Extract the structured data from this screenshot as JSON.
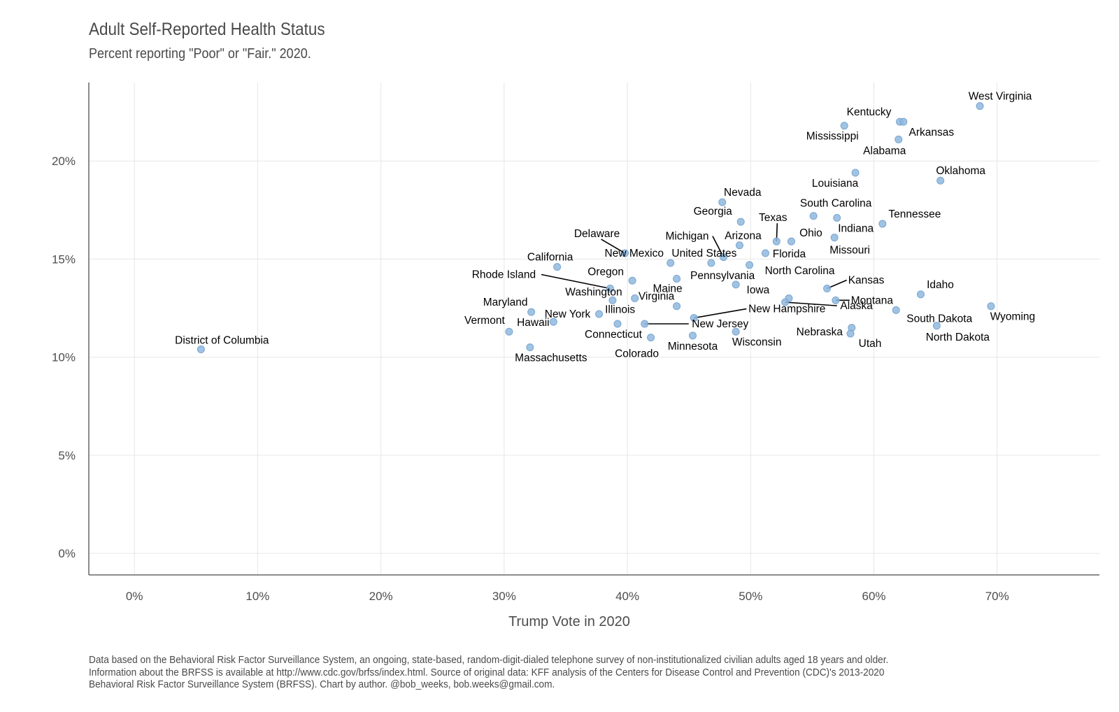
{
  "chart_data": {
    "type": "scatter",
    "title": "Adult Self-Reported Health Status",
    "subtitle": "Percent reporting \"Poor\" or \"Fair.\" 2020.",
    "xlabel": "Trump Vote in 2020",
    "ylabel": "",
    "xlim": [
      -3.7,
      78.3
    ],
    "ylim": [
      -1.1,
      24
    ],
    "x_ticks": [
      0,
      10,
      20,
      30,
      40,
      50,
      60,
      70
    ],
    "x_tick_labels": [
      "0%",
      "10%",
      "20%",
      "30%",
      "40%",
      "50%",
      "60%",
      "70%"
    ],
    "y_ticks": [
      0,
      5,
      10,
      15,
      20
    ],
    "y_tick_labels": [
      "0%",
      "5%",
      "10%",
      "15%",
      "20%"
    ],
    "grid": true,
    "points": [
      {
        "label": "District of Columbia",
        "x": 5.4,
        "y": 10.4
      },
      {
        "label": "Vermont",
        "x": 30.4,
        "y": 11.3
      },
      {
        "label": "Hawaii",
        "x": 34.0,
        "y": 11.8
      },
      {
        "label": "Massachusetts",
        "x": 32.1,
        "y": 10.5
      },
      {
        "label": "Maryland",
        "x": 32.2,
        "y": 12.3
      },
      {
        "label": "California",
        "x": 34.3,
        "y": 14.6
      },
      {
        "label": "New York",
        "x": 37.7,
        "y": 12.2
      },
      {
        "label": "Rhode Island",
        "x": 38.6,
        "y": 13.5
      },
      {
        "label": "Washington",
        "x": 38.8,
        "y": 12.9
      },
      {
        "label": "Connecticut",
        "x": 39.2,
        "y": 11.7
      },
      {
        "label": "Delaware",
        "x": 39.8,
        "y": 15.3
      },
      {
        "label": "Oregon",
        "x": 40.4,
        "y": 13.9
      },
      {
        "label": "Illinois",
        "x": 40.6,
        "y": 13.0
      },
      {
        "label": "New Jersey",
        "x": 41.4,
        "y": 11.7
      },
      {
        "label": "Colorado",
        "x": 41.9,
        "y": 11.0
      },
      {
        "label": "New Mexico",
        "x": 43.5,
        "y": 14.8
      },
      {
        "label": "Virginia",
        "x": 44.0,
        "y": 12.6
      },
      {
        "label": "United States",
        "x": 46.8,
        "y": 14.8
      },
      {
        "label": "Maine",
        "x": 44.0,
        "y": 14.0
      },
      {
        "label": "New Hampshire",
        "x": 45.4,
        "y": 12.0
      },
      {
        "label": "Minnesota",
        "x": 45.3,
        "y": 11.1
      },
      {
        "label": "Michigan",
        "x": 47.8,
        "y": 15.1
      },
      {
        "label": "Nevada",
        "x": 47.7,
        "y": 17.9
      },
      {
        "label": "Pennsylvania",
        "x": 48.8,
        "y": 13.7
      },
      {
        "label": "Wisconsin",
        "x": 48.8,
        "y": 11.3
      },
      {
        "label": "Arizona",
        "x": 49.1,
        "y": 15.7
      },
      {
        "label": "Georgia",
        "x": 49.2,
        "y": 16.9
      },
      {
        "label": "North Carolina",
        "x": 49.9,
        "y": 14.7
      },
      {
        "label": "Florida",
        "x": 51.2,
        "y": 15.3
      },
      {
        "label": "Texas",
        "x": 52.1,
        "y": 15.9
      },
      {
        "label": "Ohio",
        "x": 53.3,
        "y": 15.9
      },
      {
        "label": "Iowa",
        "x": 53.1,
        "y": 13.0
      },
      {
        "label": "Alaska",
        "x": 52.8,
        "y": 12.8
      },
      {
        "label": "South Carolina",
        "x": 55.1,
        "y": 17.2
      },
      {
        "label": "Kansas",
        "x": 56.2,
        "y": 13.5
      },
      {
        "label": "Montana",
        "x": 56.9,
        "y": 12.9
      },
      {
        "label": "Indiana",
        "x": 57.0,
        "y": 17.1
      },
      {
        "label": "Missouri",
        "x": 56.8,
        "y": 16.1
      },
      {
        "label": "Mississippi",
        "x": 57.6,
        "y": 21.8
      },
      {
        "label": "Nebraska",
        "x": 58.2,
        "y": 11.5
      },
      {
        "label": "Utah",
        "x": 58.1,
        "y": 11.2
      },
      {
        "label": "Louisiana",
        "x": 58.5,
        "y": 19.4
      },
      {
        "label": "Tennessee",
        "x": 60.7,
        "y": 16.8
      },
      {
        "label": "South Dakota",
        "x": 61.8,
        "y": 12.4
      },
      {
        "label": "Kentucky",
        "x": 62.1,
        "y": 22.0
      },
      {
        "label": "Alabama",
        "x": 62.0,
        "y": 21.1
      },
      {
        "label": "Arkansas",
        "x": 62.4,
        "y": 22.0
      },
      {
        "label": "Idaho",
        "x": 63.8,
        "y": 13.2
      },
      {
        "label": "North Dakota",
        "x": 65.1,
        "y": 11.6
      },
      {
        "label": "Oklahoma",
        "x": 65.4,
        "y": 19.0
      },
      {
        "label": "West Virginia",
        "x": 68.6,
        "y": 22.8
      },
      {
        "label": "Wyoming",
        "x": 69.5,
        "y": 12.6
      }
    ]
  },
  "caption": [
    "Data based on the Behavioral Risk Factor Surveillance System, an ongoing, state-based, random-digit-dialed telephone survey of non-institutionalized civilian adults aged 18 years and older.",
    "Information about the BRFSS is available at http://www.cdc.gov/brfss/index.html. Source of original data: KFF analysis of the Centers for Disease Control and Prevention (CDC)'s 2013-2020",
    "Behavioral Risk Factor Surveillance System (BRFSS). Chart by author. @bob_weeks, bob.weeks@gmail.com."
  ],
  "colors": {
    "point_fill": "#8fb8de",
    "point_stroke": "#7aa5d0",
    "grid": "#e6e6e6",
    "axis": "#666666",
    "text": "#4d4d4d"
  }
}
